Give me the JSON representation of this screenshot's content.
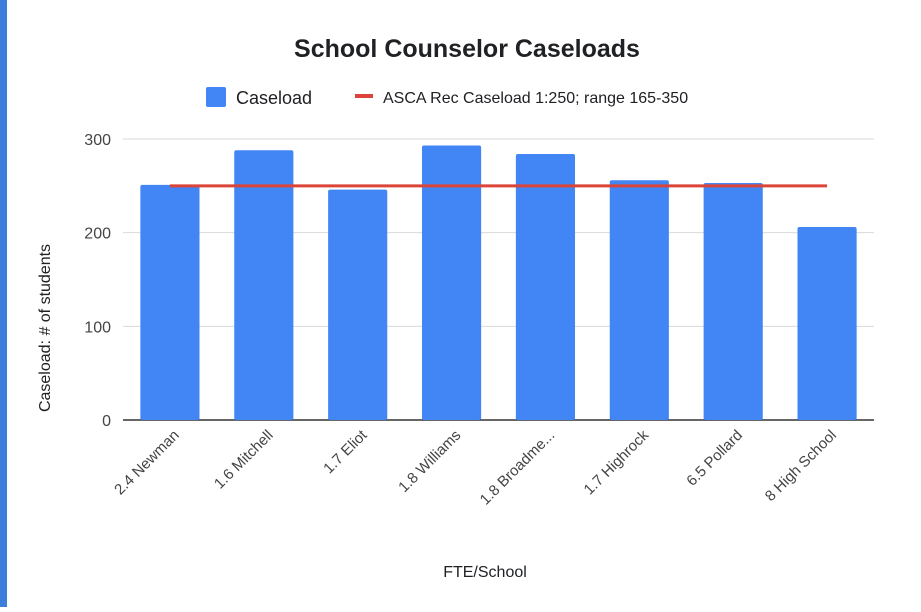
{
  "chart_data": {
    "type": "bar",
    "title": "School Counselor Caseloads",
    "xlabel": "FTE/School",
    "ylabel": "Caseload: # of students",
    "categories": [
      "2.4 Newman",
      "1.6 Mitchell",
      "1.7 Eliot",
      "1.8 Williams",
      "1.8 Broadme...",
      "1.7 Highrock",
      "6.5 Pollard",
      "8 High School"
    ],
    "series": [
      {
        "name": "Caseload",
        "type": "bar",
        "color": "#4285f4",
        "values": [
          251,
          288,
          246,
          293,
          284,
          256,
          253,
          206
        ]
      },
      {
        "name": "ASCA Rec Caseload  1:250; range 165-350",
        "type": "line",
        "color": "#db4437",
        "values": [
          250,
          250,
          250,
          250,
          250,
          250,
          250,
          250
        ]
      }
    ],
    "ylim": [
      0,
      300
    ],
    "yticks": [
      0,
      100,
      200,
      300
    ],
    "grid": true,
    "legend_position": "top"
  }
}
